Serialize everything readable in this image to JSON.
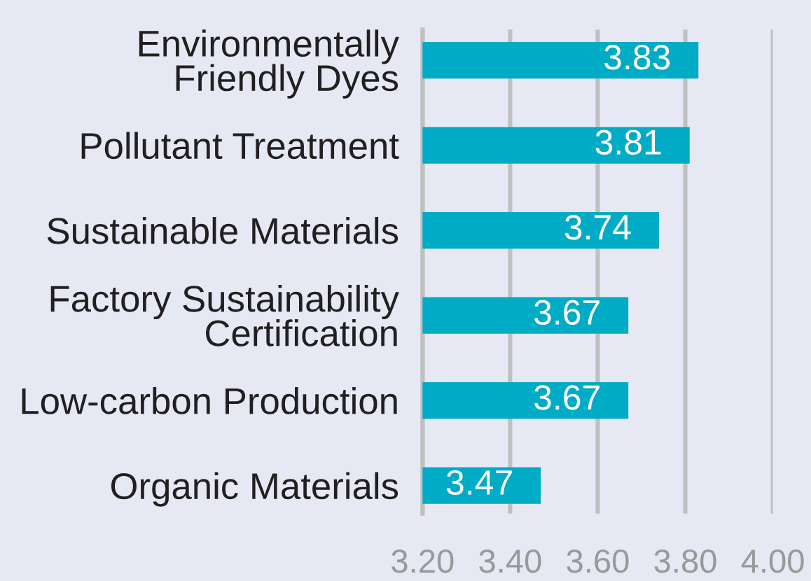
{
  "chart_data": {
    "type": "bar",
    "orientation": "horizontal",
    "categories": [
      "Environmentally\nFriendly Dyes",
      "Pollutant Treatment",
      "Sustainable Materials",
      "Factory Sustainability\nCertification",
      "Low-carbon Production",
      "Organic Materials"
    ],
    "values": [
      3.83,
      3.81,
      3.74,
      3.67,
      3.67,
      3.47
    ],
    "color": "#00abc6",
    "xlim": [
      3.2,
      4.0
    ],
    "xticks": [
      {
        "value": 3.2,
        "label": "3.20"
      },
      {
        "value": 3.4,
        "label": "3.40"
      },
      {
        "value": 3.6,
        "label": "3.60"
      },
      {
        "value": 3.8,
        "label": "3.80"
      },
      {
        "value": 4.0,
        "label": "4.00"
      }
    ],
    "grid": "x",
    "data_labels": true
  }
}
